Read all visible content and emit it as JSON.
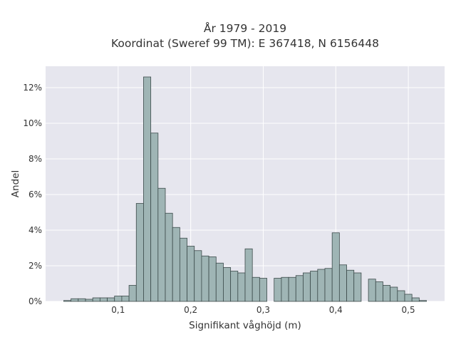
{
  "chart_data": {
    "type": "bar",
    "title_lines": [
      "År 1979 - 2019",
      "Koordinat (Sweref 99 TM): E 367418, N 6156448"
    ],
    "xlabel": "Signifikant våghöjd (m)",
    "ylabel": "Andel",
    "xlim": [
      0.0,
      0.55
    ],
    "ylim": [
      0,
      13.2
    ],
    "x_ticks": [
      {
        "value": 0.1,
        "label": "0,1"
      },
      {
        "value": 0.2,
        "label": "0,2"
      },
      {
        "value": 0.3,
        "label": "0,3"
      },
      {
        "value": 0.4,
        "label": "0,4"
      },
      {
        "value": 0.5,
        "label": "0,5"
      }
    ],
    "y_ticks": [
      {
        "value": 0,
        "label": "0%"
      },
      {
        "value": 2,
        "label": "2%"
      },
      {
        "value": 4,
        "label": "4%"
      },
      {
        "value": 6,
        "label": "6%"
      },
      {
        "value": 8,
        "label": "8%"
      },
      {
        "value": 10,
        "label": "10%"
      },
      {
        "value": 12,
        "label": "12%"
      }
    ],
    "grid": true,
    "bin_width": 0.01,
    "x": [
      0.03,
      0.04,
      0.05,
      0.06,
      0.07,
      0.08,
      0.09,
      0.1,
      0.11,
      0.12,
      0.13,
      0.14,
      0.15,
      0.16,
      0.17,
      0.18,
      0.19,
      0.2,
      0.21,
      0.22,
      0.23,
      0.24,
      0.25,
      0.26,
      0.27,
      0.28,
      0.29,
      0.3,
      0.31,
      0.32,
      0.33,
      0.34,
      0.35,
      0.36,
      0.37,
      0.38,
      0.39,
      0.4,
      0.41,
      0.42,
      0.43,
      0.44,
      0.45,
      0.46,
      0.47,
      0.48,
      0.49,
      0.5,
      0.51,
      0.52
    ],
    "values": [
      0.05,
      0.15,
      0.15,
      0.12,
      0.2,
      0.2,
      0.2,
      0.3,
      0.3,
      0.9,
      5.5,
      12.6,
      9.45,
      6.35,
      4.95,
      4.15,
      3.55,
      3.1,
      2.85,
      2.55,
      2.5,
      2.15,
      1.9,
      1.7,
      1.6,
      2.95,
      1.35,
      1.3,
      0,
      1.3,
      1.35,
      1.35,
      1.45,
      1.6,
      1.7,
      1.8,
      1.85,
      3.85,
      2.05,
      1.75,
      1.6,
      0,
      1.25,
      1.1,
      0.9,
      0.8,
      0.6,
      0.4,
      0.2,
      0.05
    ],
    "colors": {
      "bar_fill": "#9fb5b5",
      "bar_stroke": "#3c4a4a",
      "plot_bg": "#e6e6ee",
      "grid": "#ffffff",
      "text": "#333333"
    }
  }
}
